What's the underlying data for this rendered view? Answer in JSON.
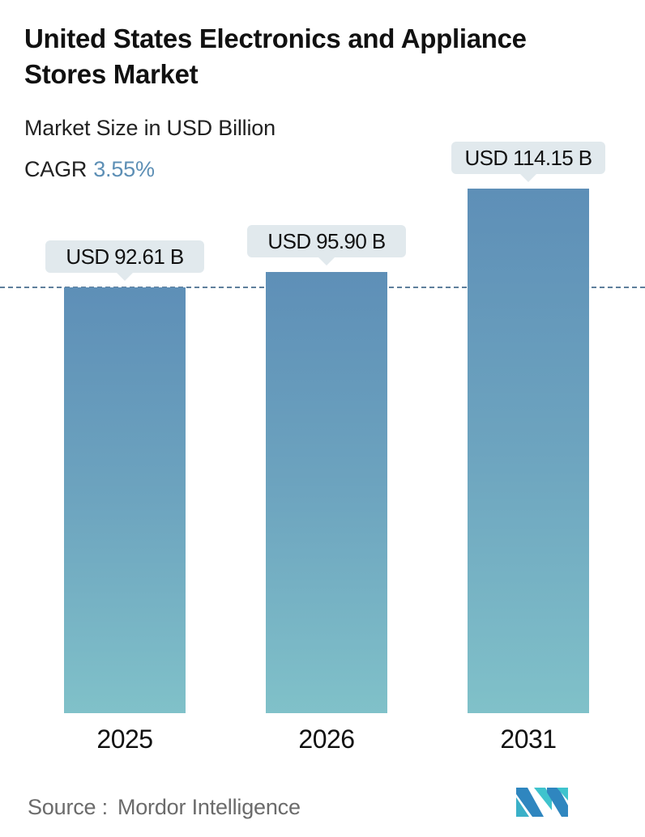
{
  "header": {
    "title": "United States Electronics and Appliance Stores Market",
    "subtitle": "Market Size in USD Billion",
    "cagr_label": "CAGR",
    "cagr_value": "3.55%"
  },
  "colors": {
    "accent": "#5d8fb5",
    "bar_top": "#5e8fb7",
    "bar_bottom": "#80c1c9",
    "label_bg": "#e1e9ed",
    "baseline": "#5f7f9c",
    "source_text": "#6b6b6b"
  },
  "chart_data": {
    "type": "bar",
    "title": "United States Electronics and Appliance Stores Market",
    "subtitle": "Market Size in USD Billion",
    "categories": [
      "2025",
      "2026",
      "2031"
    ],
    "values": [
      92.61,
      95.9,
      114.15
    ],
    "value_labels": [
      "USD 92.61 B",
      "USD 95.90 B",
      "USD 114.15 B"
    ],
    "unit": "USD Billion",
    "cagr": "3.55%",
    "xlabel": "",
    "ylabel": "",
    "grid": false,
    "reference_line": {
      "style": "dashed",
      "at_value": 92.61
    },
    "legend": null
  },
  "footer": {
    "source_label": "Source :",
    "source_name": "Mordor Intelligence",
    "logo": "mordor-intelligence-logo"
  }
}
